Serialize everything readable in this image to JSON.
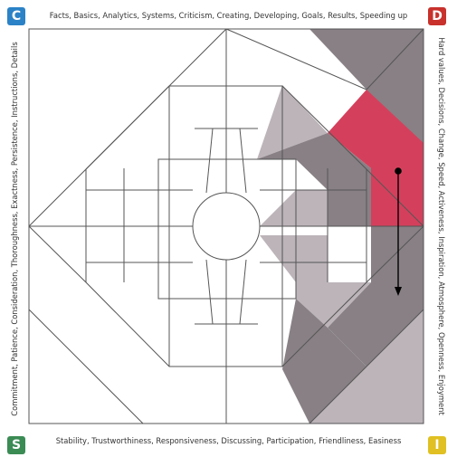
{
  "corners": {
    "tl": {
      "letter": "C",
      "color": "#2b82c6"
    },
    "tr": {
      "letter": "D",
      "color": "#c8312c"
    },
    "bl": {
      "letter": "S",
      "color": "#3b8b55"
    },
    "br": {
      "letter": "I",
      "color": "#e0c022"
    }
  },
  "edges": {
    "top": "Facts, Basics, Analytics, Systems, Criticism, Creating, Developing, Goals, Results, Speeding up",
    "right": "Hard values, Decisions, Change, Speed, Activeness, Inspiration, Atmosphere, Openness, Enjoyment",
    "bottom": "Stability, Trustworthiness, Responsiveness, Discussing, Participation, Friendliness, Easiness",
    "left": "Commitment, Patience, Consideration, Thoroughness, Exactness, Persistence, Instructions, Details"
  },
  "colors": {
    "highlight": "#d4405c",
    "dark_shade": "#888085",
    "light_shade": "#bcb4b9",
    "line": "#555555"
  }
}
